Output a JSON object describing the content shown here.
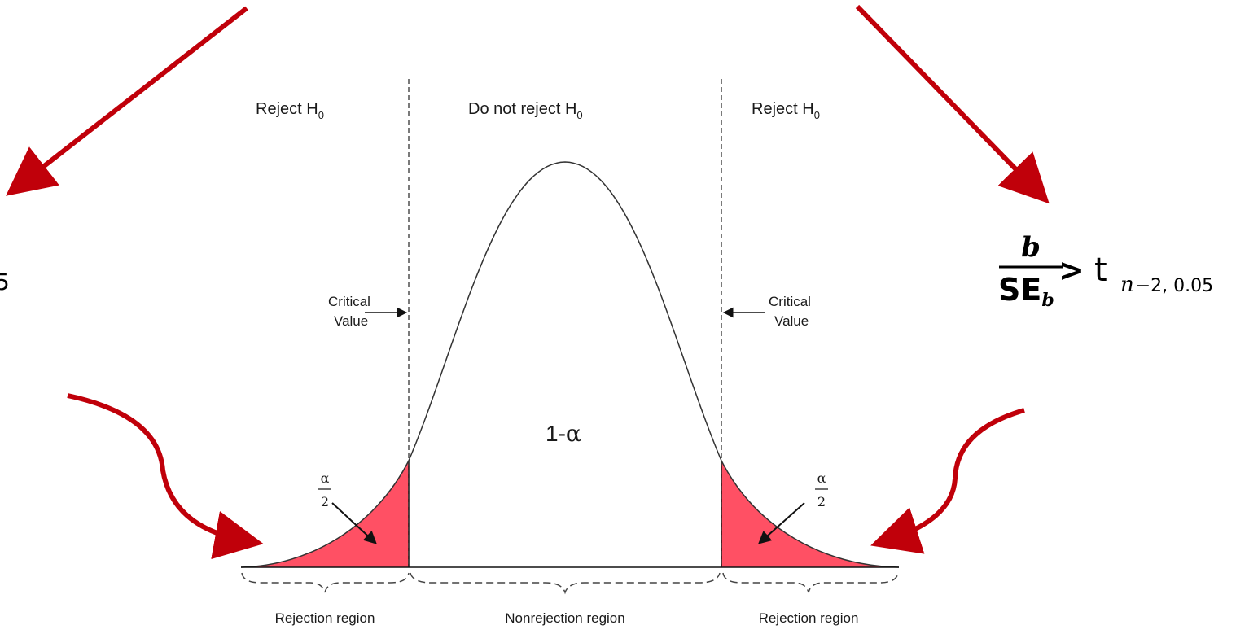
{
  "region_headers": {
    "left": {
      "text": "Reject H",
      "sub": "0"
    },
    "middle": {
      "text": "Do not reject H",
      "sub": "0"
    },
    "right": {
      "text": "Reject H",
      "sub": "0"
    }
  },
  "critical_value": {
    "line1": "Critical",
    "line2": "Value"
  },
  "alpha_fraction": {
    "numerator": "α",
    "denominator": "2"
  },
  "center_label": {
    "prefix": "1-",
    "symbol": "α"
  },
  "bottom_regions": {
    "left": "Rejection region",
    "middle": "Nonrejection region",
    "right": "Rejection region"
  },
  "formula": {
    "numerator": "b",
    "denominator": "SE",
    "denominator_sub": "b",
    "operator": ">",
    "stat": "t",
    "df_var": "n",
    "df_rest": "−2, 0.05"
  },
  "left_cutoff_text": "5",
  "colors": {
    "arrow_red": "#c0000a",
    "tail_fill": "#ff5064",
    "ink": "#1a1a1a"
  }
}
